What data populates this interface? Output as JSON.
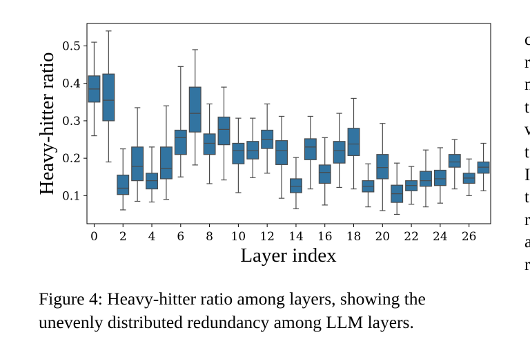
{
  "chart_data": {
    "type": "box",
    "xlabel": "Layer index",
    "ylabel": "Heavy-hitter ratio",
    "ylim": [
      0.025,
      0.56
    ],
    "xlim": [
      -0.5,
      27.5
    ],
    "x_ticks": [
      0,
      2,
      4,
      6,
      8,
      10,
      12,
      14,
      16,
      18,
      20,
      22,
      24,
      26
    ],
    "y_ticks": [
      0.1,
      0.2,
      0.3,
      0.4,
      0.5
    ],
    "box_color": "#3274a1",
    "line_color": "#4a4a4a",
    "boxes": [
      {
        "layer": 0,
        "whislo": 0.26,
        "q1": 0.35,
        "med": 0.385,
        "q3": 0.42,
        "whishi": 0.51
      },
      {
        "layer": 1,
        "whislo": 0.19,
        "q1": 0.3,
        "med": 0.355,
        "q3": 0.425,
        "whishi": 0.54
      },
      {
        "layer": 2,
        "whislo": 0.062,
        "q1": 0.103,
        "med": 0.12,
        "q3": 0.155,
        "whishi": 0.225
      },
      {
        "layer": 3,
        "whislo": 0.085,
        "q1": 0.14,
        "med": 0.178,
        "q3": 0.23,
        "whishi": 0.335
      },
      {
        "layer": 4,
        "whislo": 0.083,
        "q1": 0.118,
        "med": 0.14,
        "q3": 0.16,
        "whishi": 0.23
      },
      {
        "layer": 5,
        "whislo": 0.09,
        "q1": 0.145,
        "med": 0.173,
        "q3": 0.23,
        "whishi": 0.34
      },
      {
        "layer": 6,
        "whislo": 0.15,
        "q1": 0.21,
        "med": 0.255,
        "q3": 0.275,
        "whishi": 0.445
      },
      {
        "layer": 7,
        "whislo": 0.182,
        "q1": 0.27,
        "med": 0.32,
        "q3": 0.39,
        "whishi": 0.49
      },
      {
        "layer": 8,
        "whislo": 0.132,
        "q1": 0.21,
        "med": 0.24,
        "q3": 0.265,
        "whishi": 0.345
      },
      {
        "layer": 9,
        "whislo": 0.142,
        "q1": 0.236,
        "med": 0.277,
        "q3": 0.31,
        "whishi": 0.39
      },
      {
        "layer": 10,
        "whislo": 0.108,
        "q1": 0.185,
        "med": 0.22,
        "q3": 0.24,
        "whishi": 0.307
      },
      {
        "layer": 11,
        "whislo": 0.148,
        "q1": 0.198,
        "med": 0.22,
        "q3": 0.245,
        "whishi": 0.307
      },
      {
        "layer": 12,
        "whislo": 0.16,
        "q1": 0.226,
        "med": 0.25,
        "q3": 0.275,
        "whishi": 0.345
      },
      {
        "layer": 13,
        "whislo": 0.093,
        "q1": 0.183,
        "med": 0.22,
        "q3": 0.247,
        "whishi": 0.312
      },
      {
        "layer": 14,
        "whislo": 0.065,
        "q1": 0.108,
        "med": 0.125,
        "q3": 0.145,
        "whishi": 0.202
      },
      {
        "layer": 15,
        "whislo": 0.118,
        "q1": 0.196,
        "med": 0.23,
        "q3": 0.252,
        "whishi": 0.312
      },
      {
        "layer": 16,
        "whislo": 0.075,
        "q1": 0.133,
        "med": 0.162,
        "q3": 0.182,
        "whishi": 0.255
      },
      {
        "layer": 17,
        "whislo": 0.122,
        "q1": 0.187,
        "med": 0.22,
        "q3": 0.245,
        "whishi": 0.32
      },
      {
        "layer": 18,
        "whislo": 0.118,
        "q1": 0.207,
        "med": 0.238,
        "q3": 0.28,
        "whishi": 0.36
      },
      {
        "layer": 19,
        "whislo": 0.07,
        "q1": 0.11,
        "med": 0.125,
        "q3": 0.14,
        "whishi": 0.185
      },
      {
        "layer": 20,
        "whislo": 0.06,
        "q1": 0.145,
        "med": 0.175,
        "q3": 0.21,
        "whishi": 0.293
      },
      {
        "layer": 21,
        "whislo": 0.05,
        "q1": 0.082,
        "med": 0.105,
        "q3": 0.128,
        "whishi": 0.187
      },
      {
        "layer": 22,
        "whislo": 0.077,
        "q1": 0.113,
        "med": 0.127,
        "q3": 0.14,
        "whishi": 0.178
      },
      {
        "layer": 23,
        "whislo": 0.07,
        "q1": 0.125,
        "med": 0.14,
        "q3": 0.165,
        "whishi": 0.222
      },
      {
        "layer": 24,
        "whislo": 0.08,
        "q1": 0.127,
        "med": 0.145,
        "q3": 0.168,
        "whishi": 0.228
      },
      {
        "layer": 25,
        "whislo": 0.118,
        "q1": 0.176,
        "med": 0.19,
        "q3": 0.21,
        "whishi": 0.25
      },
      {
        "layer": 26,
        "whislo": 0.1,
        "q1": 0.133,
        "med": 0.147,
        "q3": 0.16,
        "whishi": 0.198
      },
      {
        "layer": 27,
        "whislo": 0.113,
        "q1": 0.16,
        "med": 0.176,
        "q3": 0.19,
        "whishi": 0.24
      }
    ]
  },
  "caption": {
    "line1": "Figure 4: Heavy-hitter ratio among layers, showing the",
    "line2": "unevenly distributed redundancy among LLM layers."
  },
  "side_text": [
    "c",
    "r",
    "n",
    "t",
    "v",
    "t",
    "I",
    "t",
    "r",
    "a",
    "r"
  ]
}
